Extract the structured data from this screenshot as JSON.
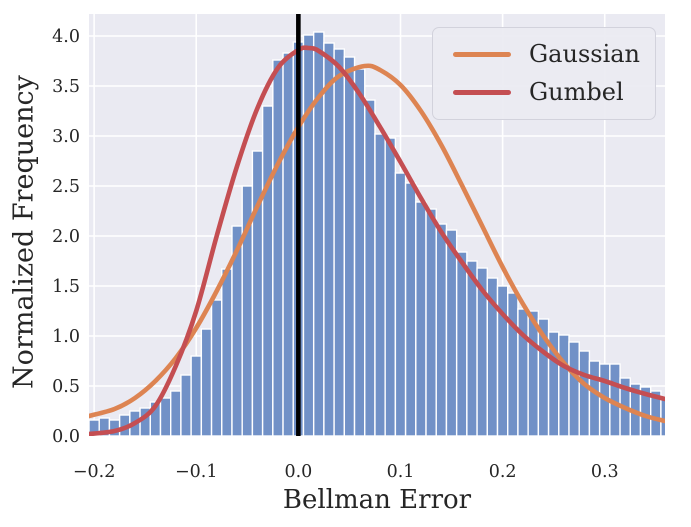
{
  "figure": {
    "background": "#ffffff",
    "axes_background": "#eaeaf2",
    "grid_color": "#ffffff",
    "text_color": "#262626"
  },
  "chart_data": {
    "type": "bar",
    "subtype": "histogram-with-fitted-curves",
    "title": "",
    "xlabel": "Bellman Error",
    "ylabel": "Normalized Frequency",
    "xlim": [
      -0.205,
      0.359
    ],
    "ylim": [
      0,
      4.22
    ],
    "grid": true,
    "legend_position": "upper right",
    "xticks": [
      -0.2,
      -0.1,
      0.0,
      0.1,
      0.2,
      0.3
    ],
    "xtick_labels": [
      "−0.2",
      "−0.1",
      "0.0",
      "0.1",
      "0.2",
      "0.3"
    ],
    "yticks": [
      0,
      0.5,
      1.0,
      1.5,
      2.0,
      2.5,
      3.0,
      3.5,
      4.0
    ],
    "ytick_labels": [
      "0.0",
      "0.5",
      "1.0",
      "1.5",
      "2.0",
      "2.5",
      "3.0",
      "3.5",
      "4.0"
    ],
    "histogram": {
      "color": "#7191c7",
      "edge_color": "#ffffff",
      "bin_width": 0.01,
      "bin_centers": [
        -0.2,
        -0.19,
        -0.18,
        -0.17,
        -0.16,
        -0.15,
        -0.14,
        -0.13,
        -0.12,
        -0.11,
        -0.1,
        -0.09,
        -0.08,
        -0.07,
        -0.06,
        -0.05,
        -0.04,
        -0.03,
        -0.02,
        -0.01,
        0.0,
        0.01,
        0.02,
        0.03,
        0.04,
        0.05,
        0.06,
        0.07,
        0.08,
        0.09,
        0.1,
        0.11,
        0.12,
        0.13,
        0.14,
        0.15,
        0.16,
        0.17,
        0.18,
        0.19,
        0.2,
        0.21,
        0.22,
        0.23,
        0.24,
        0.25,
        0.26,
        0.27,
        0.28,
        0.29,
        0.3,
        0.31,
        0.32,
        0.33,
        0.34,
        0.35,
        0.36
      ],
      "values": [
        0.16,
        0.18,
        0.16,
        0.21,
        0.25,
        0.28,
        0.34,
        0.38,
        0.45,
        0.61,
        0.8,
        1.07,
        1.36,
        1.67,
        2.1,
        2.5,
        2.85,
        3.3,
        3.76,
        3.83,
        3.94,
        4.01,
        4.04,
        3.93,
        3.87,
        3.79,
        3.67,
        3.36,
        3.02,
        2.98,
        2.63,
        2.53,
        2.34,
        2.27,
        2.12,
        2.06,
        1.84,
        1.75,
        1.68,
        1.58,
        1.5,
        1.43,
        1.27,
        1.25,
        1.17,
        1.04,
        1.01,
        0.94,
        0.85,
        0.75,
        0.72,
        0.72,
        0.58,
        0.52,
        0.49,
        0.45,
        0.39
      ]
    },
    "vline": {
      "x": 0.0,
      "color": "#000000"
    },
    "series": [
      {
        "name": "Gaussian",
        "color": "#dd8452",
        "points": [
          [
            -0.205,
            0.2
          ],
          [
            -0.18,
            0.27
          ],
          [
            -0.16,
            0.38
          ],
          [
            -0.14,
            0.55
          ],
          [
            -0.12,
            0.78
          ],
          [
            -0.1,
            1.08
          ],
          [
            -0.08,
            1.45
          ],
          [
            -0.06,
            1.86
          ],
          [
            -0.04,
            2.3
          ],
          [
            -0.02,
            2.72
          ],
          [
            0.0,
            3.09
          ],
          [
            0.02,
            3.39
          ],
          [
            0.04,
            3.6
          ],
          [
            0.065,
            3.7
          ],
          [
            0.08,
            3.66
          ],
          [
            0.1,
            3.51
          ],
          [
            0.12,
            3.25
          ],
          [
            0.14,
            2.91
          ],
          [
            0.16,
            2.51
          ],
          [
            0.18,
            2.1
          ],
          [
            0.2,
            1.69
          ],
          [
            0.22,
            1.32
          ],
          [
            0.24,
            1.0
          ],
          [
            0.26,
            0.73
          ],
          [
            0.28,
            0.52
          ],
          [
            0.3,
            0.38
          ],
          [
            0.32,
            0.28
          ],
          [
            0.34,
            0.2
          ],
          [
            0.359,
            0.15
          ]
        ]
      },
      {
        "name": "Gumbel",
        "color": "#c44e52",
        "points": [
          [
            -0.205,
            0.02
          ],
          [
            -0.18,
            0.05
          ],
          [
            -0.16,
            0.13
          ],
          [
            -0.14,
            0.3
          ],
          [
            -0.12,
            0.7
          ],
          [
            -0.1,
            1.25
          ],
          [
            -0.08,
            2.0
          ],
          [
            -0.06,
            2.7
          ],
          [
            -0.04,
            3.28
          ],
          [
            -0.02,
            3.68
          ],
          [
            0.0,
            3.86
          ],
          [
            0.01,
            3.88
          ],
          [
            0.02,
            3.85
          ],
          [
            0.04,
            3.69
          ],
          [
            0.06,
            3.42
          ],
          [
            0.08,
            3.09
          ],
          [
            0.1,
            2.74
          ],
          [
            0.12,
            2.38
          ],
          [
            0.14,
            2.04
          ],
          [
            0.16,
            1.74
          ],
          [
            0.18,
            1.46
          ],
          [
            0.2,
            1.22
          ],
          [
            0.22,
            1.01
          ],
          [
            0.24,
            0.84
          ],
          [
            0.26,
            0.7
          ],
          [
            0.28,
            0.61
          ],
          [
            0.3,
            0.55
          ],
          [
            0.32,
            0.48
          ],
          [
            0.34,
            0.42
          ],
          [
            0.359,
            0.37
          ]
        ]
      }
    ]
  }
}
